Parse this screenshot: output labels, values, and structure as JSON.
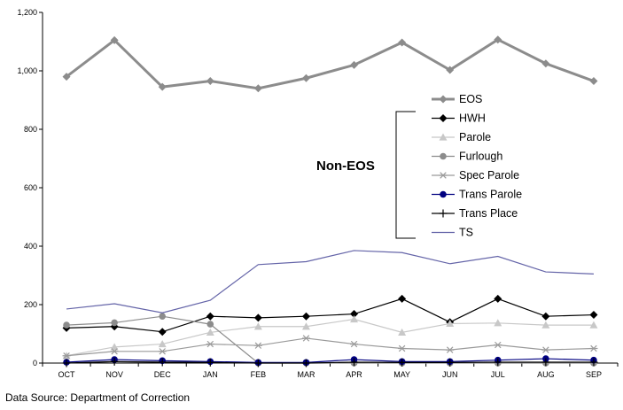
{
  "chart_data": {
    "type": "line",
    "title": "",
    "xlabel": "",
    "ylabel": "",
    "categories": [
      "OCT",
      "NOV",
      "DEC",
      "JAN",
      "FEB",
      "MAR",
      "APR",
      "MAY",
      "JUN",
      "JUL",
      "AUG",
      "SEP"
    ],
    "ylim": [
      0,
      1200
    ],
    "yticks": [
      "0",
      "200",
      "400",
      "600",
      "800",
      "1,000",
      "1,200"
    ],
    "grid": false,
    "legend_position": "right",
    "series": [
      {
        "name": "EOS",
        "color": "#8c8c8c",
        "marker": "diamond",
        "values": [
          980,
          1105,
          945,
          965,
          940,
          975,
          1020,
          1097,
          1003,
          1107,
          1025,
          965
        ]
      },
      {
        "name": "HWH",
        "color": "#000000",
        "marker": "diamond",
        "values": [
          120,
          125,
          107,
          160,
          155,
          160,
          168,
          220,
          140,
          220,
          160,
          165
        ]
      },
      {
        "name": "Parole",
        "color": "#c8c8c8",
        "marker": "triangle",
        "values": [
          25,
          55,
          65,
          105,
          125,
          125,
          150,
          105,
          135,
          137,
          130,
          130
        ]
      },
      {
        "name": "Furlough",
        "color": "#8c8c8c",
        "marker": "circle",
        "values": [
          130,
          138,
          160,
          133,
          0,
          0,
          0,
          0,
          0,
          0,
          0,
          0
        ]
      },
      {
        "name": "Spec Parole",
        "color": "#9a9a9a",
        "marker": "asterisk",
        "values": [
          25,
          40,
          40,
          65,
          60,
          85,
          65,
          50,
          45,
          62,
          45,
          50
        ]
      },
      {
        "name": "Trans Parole",
        "color": "#000080",
        "marker": "circle",
        "values": [
          3,
          12,
          8,
          5,
          2,
          2,
          12,
          5,
          5,
          10,
          15,
          10
        ]
      },
      {
        "name": "Trans Place",
        "color": "#000000",
        "marker": "plus",
        "values": [
          0,
          5,
          3,
          2,
          0,
          0,
          3,
          2,
          2,
          3,
          3,
          3
        ]
      },
      {
        "name": "TS",
        "color": "#6464a8",
        "marker": "none",
        "values": [
          185,
          203,
          172,
          215,
          337,
          347,
          385,
          378,
          340,
          365,
          312,
          305
        ]
      }
    ],
    "annotation": "Non-EOS"
  },
  "source": "Data Source: Department of Correction"
}
